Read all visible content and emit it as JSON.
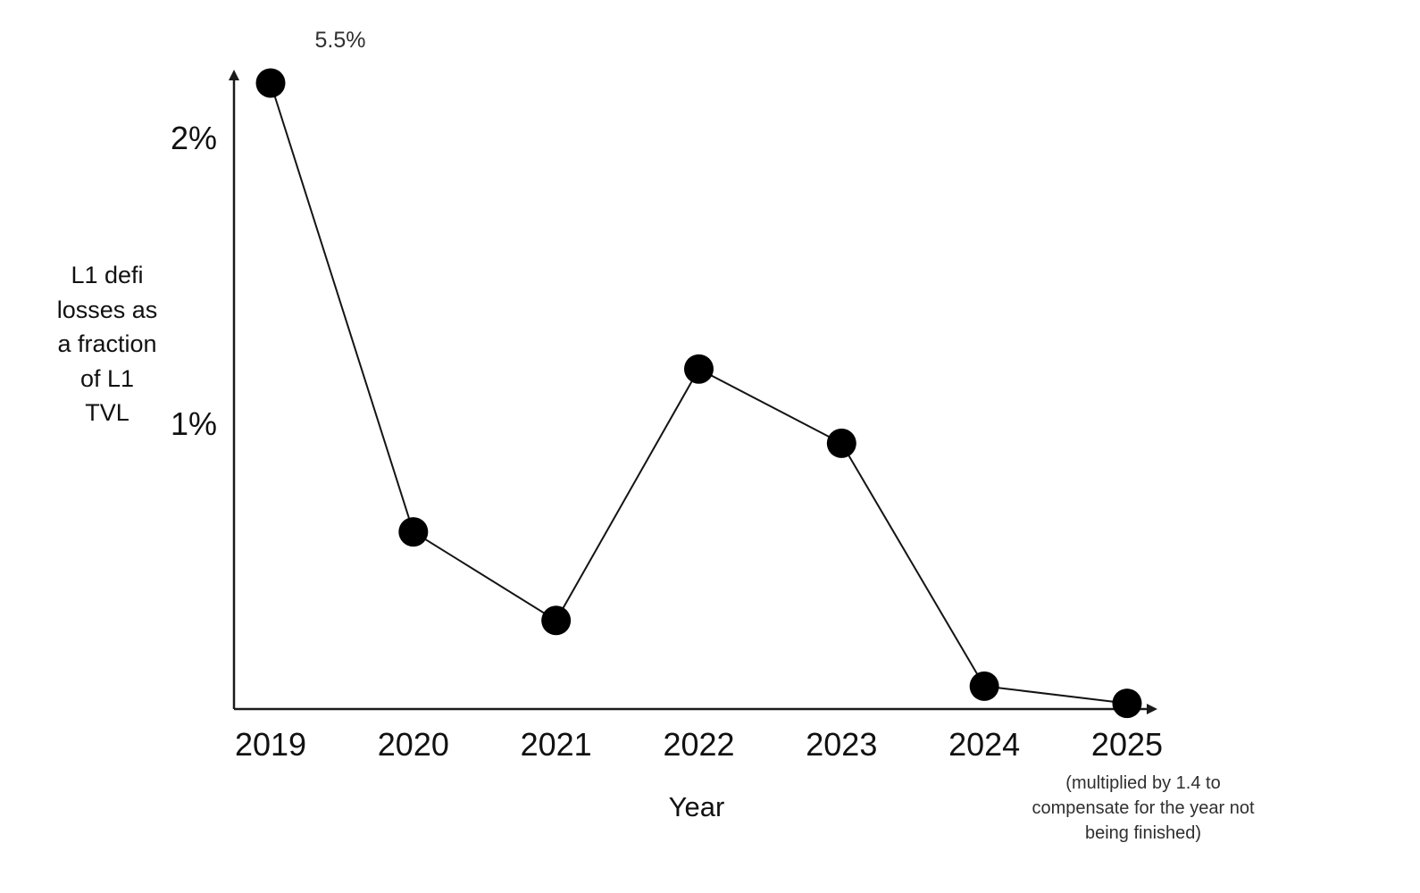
{
  "chart_data": {
    "type": "line",
    "title": "",
    "xlabel": "Year",
    "ylabel": "L1 defi losses as a fraction of L1 TVL",
    "categories": [
      "2019",
      "2020",
      "2021",
      "2022",
      "2023",
      "2024",
      "2025"
    ],
    "values": [
      5.5,
      0.62,
      0.31,
      1.19,
      0.93,
      0.08,
      0.02
    ],
    "yticks": [
      {
        "label": "2%",
        "value": 2
      },
      {
        "label": "1%",
        "value": 1
      }
    ],
    "ylim": [
      0,
      2.2
    ],
    "grid": false,
    "legend_position": "none",
    "line_color": "#141414",
    "marker_color": "#000000",
    "point_annotation": {
      "category": "2019",
      "text": "5.5%",
      "note": "2019 point is drawn clipped at the top of the axis; its true value is 5.5%"
    },
    "x_axis_note": "(multiplied by 1.4 to compensate for the year not being finished)"
  }
}
